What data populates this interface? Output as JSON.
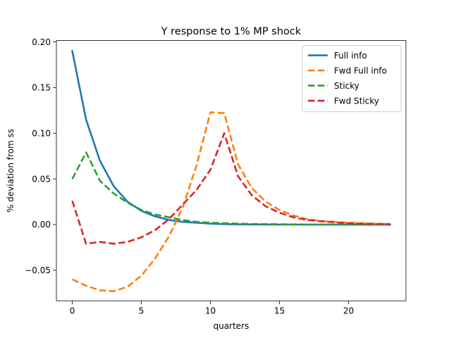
{
  "chart_data": {
    "type": "line",
    "title": "Y response to 1% MP shock",
    "xlabel": "quarters",
    "ylabel": "% deviation from ss",
    "xlim": [
      -1.15,
      24.15
    ],
    "ylim": [
      -0.0835,
      0.2015
    ],
    "xticks": [
      0,
      5,
      10,
      15,
      20
    ],
    "xtick_labels": [
      "0",
      "5",
      "10",
      "15",
      "20"
    ],
    "yticks": [
      -0.05,
      0.0,
      0.05,
      0.1,
      0.15,
      0.2
    ],
    "ytick_labels": [
      "−0.05",
      "0.00",
      "0.05",
      "0.10",
      "0.15",
      "0.20"
    ],
    "grid": false,
    "legend_position": "top-right",
    "x": [
      0,
      1,
      2,
      3,
      4,
      5,
      6,
      7,
      8,
      9,
      10,
      11,
      12,
      13,
      14,
      15,
      16,
      17,
      18,
      19,
      20,
      21,
      22,
      23
    ],
    "series": [
      {
        "name": "Full info",
        "color": "#1f77b4",
        "style": "solid",
        "values": [
          0.19,
          0.115,
          0.07,
          0.042,
          0.025,
          0.015,
          0.009,
          0.005,
          0.003,
          0.002,
          0.001,
          0.0005,
          0.0003,
          0.0002,
          0.0001,
          0.0,
          0.0,
          0.0,
          0.0,
          0.0,
          0.0,
          0.0,
          0.0,
          0.0
        ]
      },
      {
        "name": "Fwd Full info",
        "color": "#ff7f0e",
        "style": "dashed",
        "values": [
          -0.06,
          -0.067,
          -0.072,
          -0.073,
          -0.068,
          -0.056,
          -0.037,
          -0.013,
          0.019,
          0.065,
          0.123,
          0.122,
          0.066,
          0.04,
          0.025,
          0.016,
          0.01,
          0.006,
          0.004,
          0.003,
          0.002,
          0.0015,
          0.001,
          0.001
        ]
      },
      {
        "name": "Sticky",
        "color": "#2ca02c",
        "style": "dashed",
        "values": [
          0.05,
          0.079,
          0.048,
          0.034,
          0.024,
          0.016,
          0.011,
          0.008,
          0.005,
          0.003,
          0.002,
          0.0015,
          0.001,
          0.0007,
          0.0005,
          0.0003,
          0.0002,
          0.0001,
          0.0001,
          0.0,
          0.0,
          0.0,
          0.0,
          0.0
        ]
      },
      {
        "name": "Fwd Sticky",
        "color": "#d62728",
        "style": "dashed",
        "values": [
          0.026,
          -0.021,
          -0.019,
          -0.021,
          -0.019,
          -0.014,
          -0.006,
          0.006,
          0.022,
          0.038,
          0.06,
          0.1,
          0.053,
          0.032,
          0.02,
          0.013,
          0.008,
          0.005,
          0.0035,
          0.0025,
          0.0015,
          0.001,
          0.0007,
          0.0005
        ]
      }
    ]
  }
}
